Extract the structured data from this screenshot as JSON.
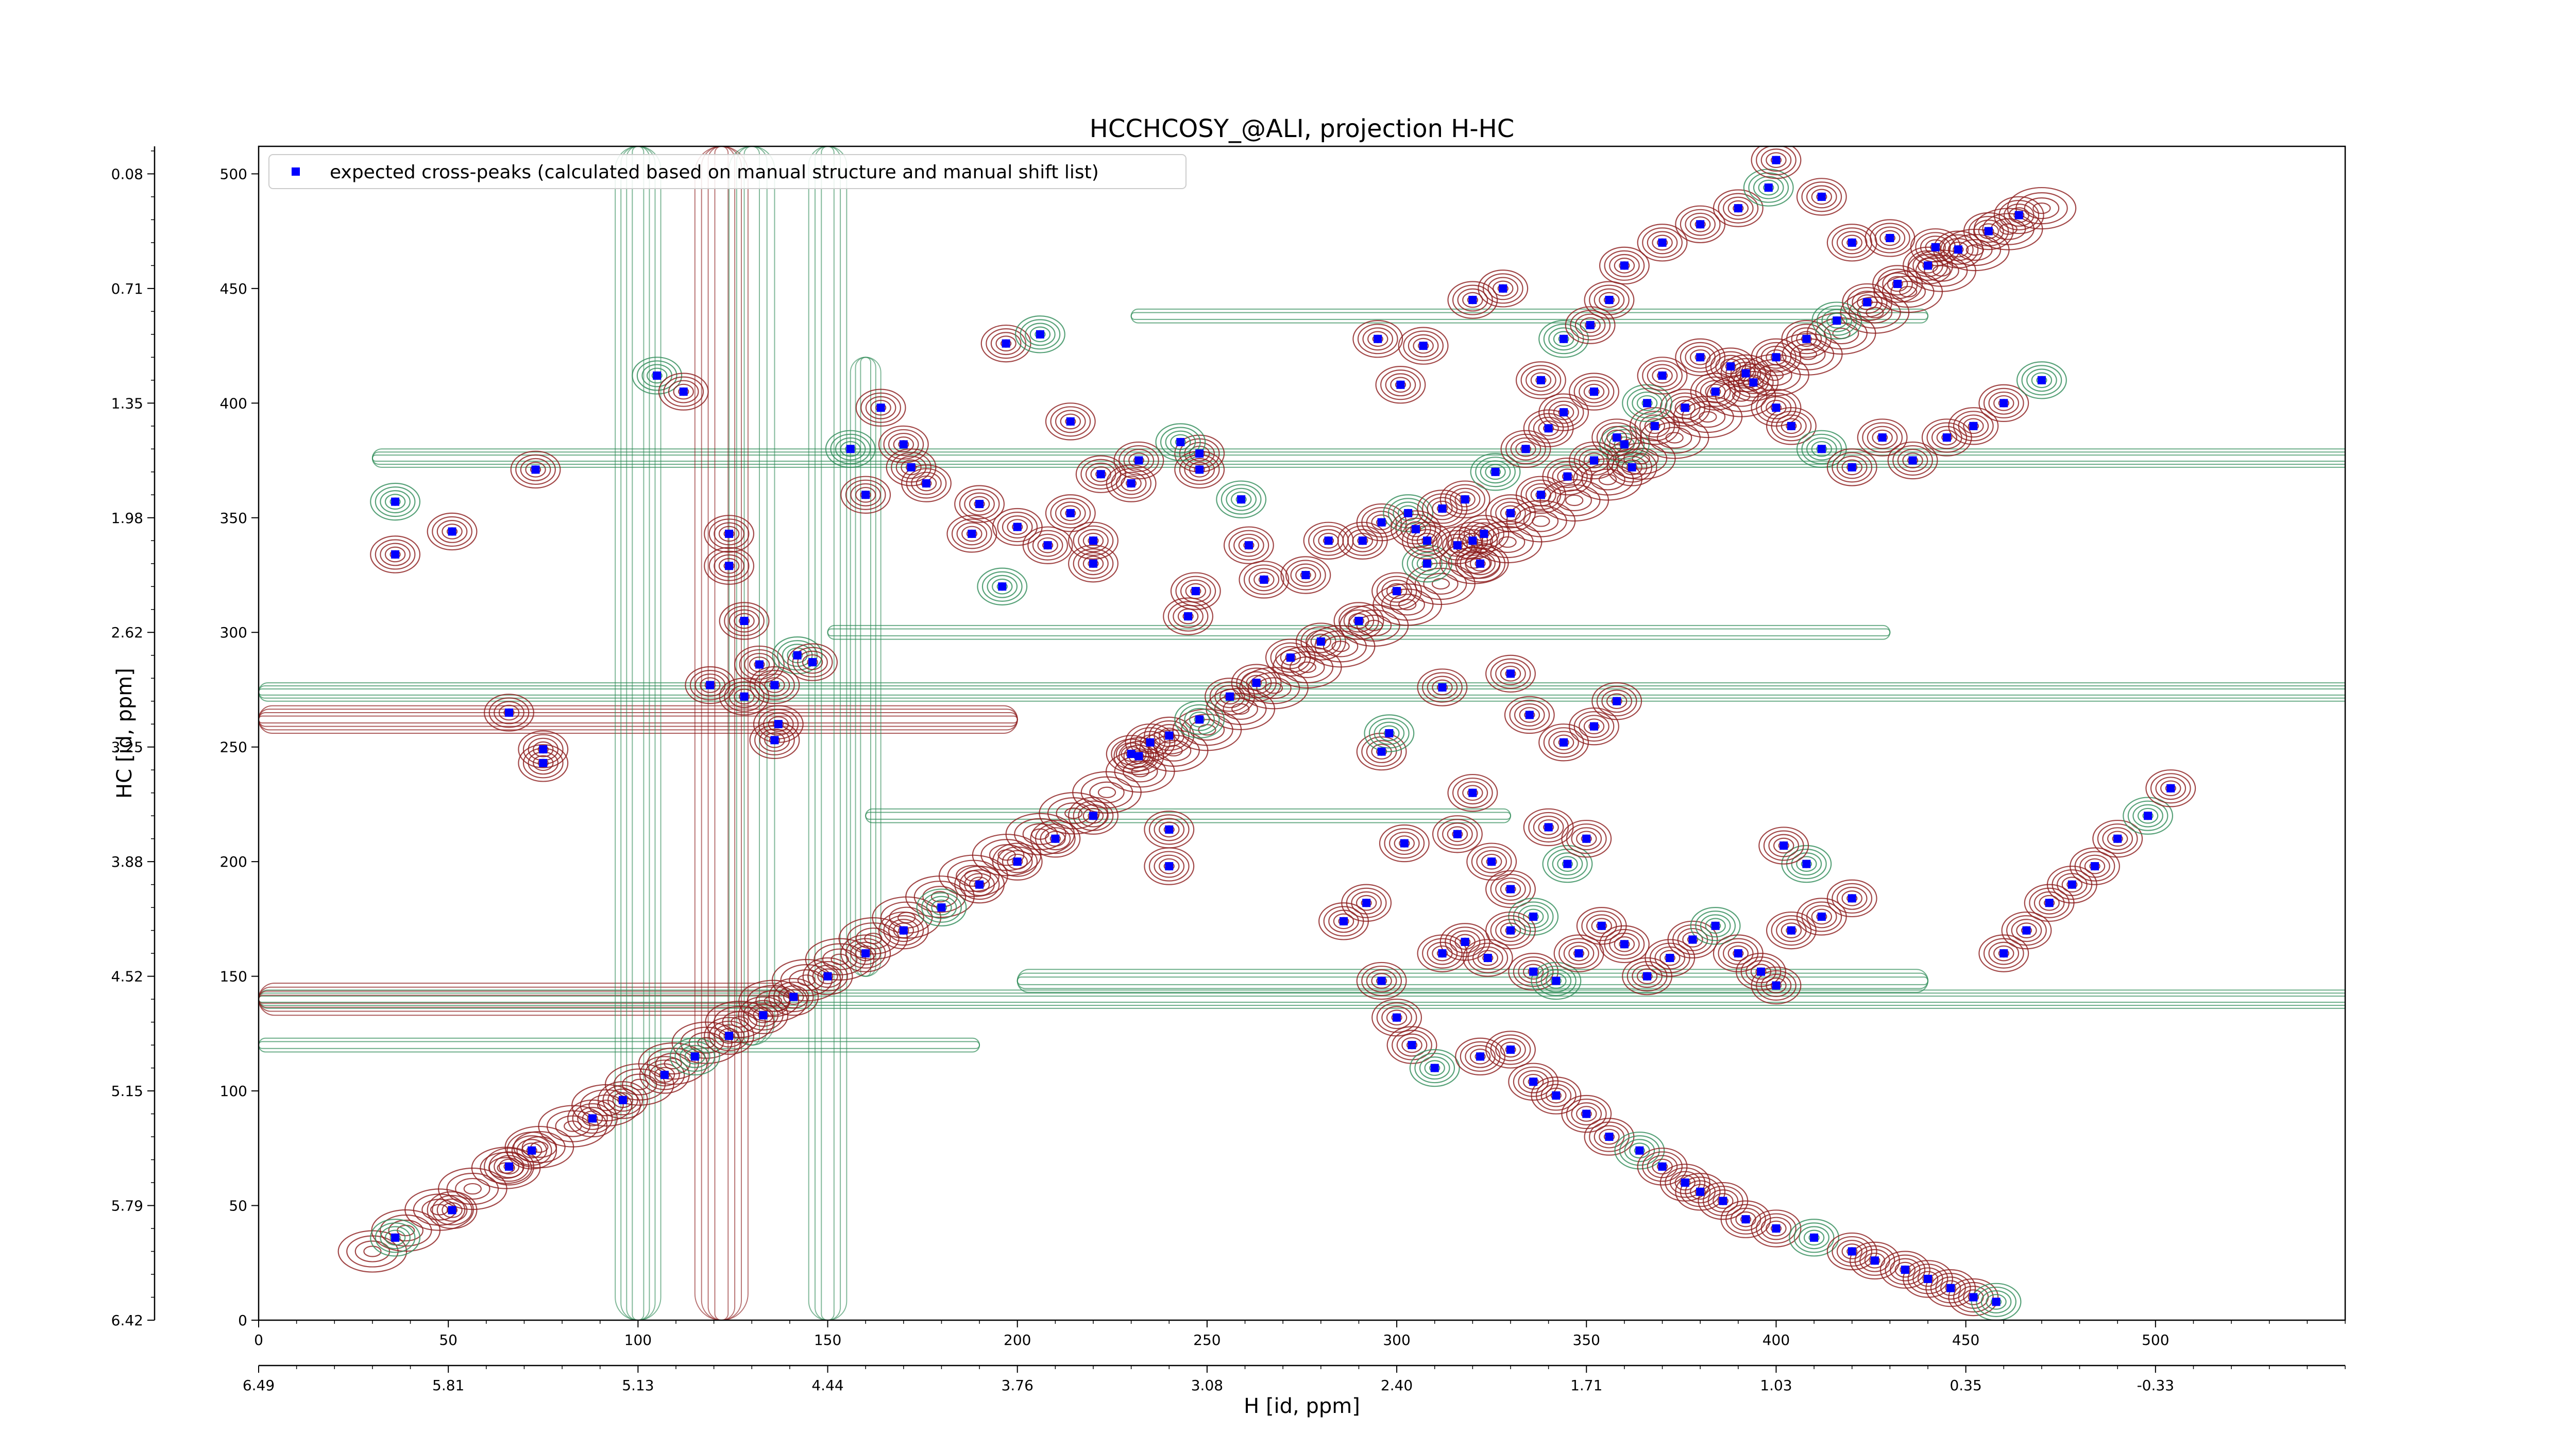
{
  "chart_data": {
    "type": "scatter",
    "title": "HCCHCOSY_@ALI, projection H-HC",
    "xlabel": "H [id, ppm]",
    "ylabel": "HC [id, ppm]",
    "xlim": [
      0,
      550
    ],
    "ylim": [
      0,
      512
    ],
    "x_ticks": [
      0,
      50,
      100,
      150,
      200,
      250,
      300,
      350,
      400,
      450,
      500
    ],
    "y_ticks": [
      0,
      50,
      100,
      150,
      200,
      250,
      300,
      350,
      400,
      450,
      500
    ],
    "x_ppm_ticks": [
      {
        "x": 0,
        "label": "6.49"
      },
      {
        "x": 50,
        "label": "5.81"
      },
      {
        "x": 100,
        "label": "5.13"
      },
      {
        "x": 150,
        "label": "4.44"
      },
      {
        "x": 200,
        "label": "3.76"
      },
      {
        "x": 250,
        "label": "3.08"
      },
      {
        "x": 300,
        "label": "2.40"
      },
      {
        "x": 350,
        "label": "1.71"
      },
      {
        "x": 400,
        "label": "1.03"
      },
      {
        "x": 450,
        "label": "0.35"
      },
      {
        "x": 500,
        "label": "-0.33"
      }
    ],
    "y_ppm_ticks": [
      {
        "y": 0,
        "label": "6.42"
      },
      {
        "y": 50,
        "label": "5.79"
      },
      {
        "y": 100,
        "label": "5.15"
      },
      {
        "y": 150,
        "label": "4.52"
      },
      {
        "y": 200,
        "label": "3.88"
      },
      {
        "y": 250,
        "label": "3.25"
      },
      {
        "y": 300,
        "label": "2.62"
      },
      {
        "y": 350,
        "label": "1.98"
      },
      {
        "y": 400,
        "label": "1.35"
      },
      {
        "y": 450,
        "label": "0.71"
      },
      {
        "y": 500,
        "label": "0.08"
      }
    ],
    "legend": {
      "location": "top-left",
      "entries": [
        "expected cross-peaks (calculated based on manual structure and manual shift list)"
      ]
    },
    "grid": false,
    "colors": {
      "marker": "#0000ff",
      "contour_positive": "#8b1a1a",
      "contour_negative": "#2e8b57"
    },
    "series": [
      {
        "name": "expected cross-peaks (calculated based on manual structure and manual shift list)",
        "points": [
          [
            36,
            36
          ],
          [
            51,
            48
          ],
          [
            66,
            67
          ],
          [
            72,
            74
          ],
          [
            88,
            88
          ],
          [
            96,
            96
          ],
          [
            107,
            107
          ],
          [
            115,
            115
          ],
          [
            124,
            124
          ],
          [
            133,
            133
          ],
          [
            141,
            141
          ],
          [
            150,
            150
          ],
          [
            160,
            160
          ],
          [
            170,
            170
          ],
          [
            180,
            180
          ],
          [
            190,
            190
          ],
          [
            200,
            200
          ],
          [
            210,
            210
          ],
          [
            220,
            220
          ],
          [
            232,
            246
          ],
          [
            240,
            255
          ],
          [
            248,
            262
          ],
          [
            256,
            272
          ],
          [
            263,
            278
          ],
          [
            272,
            289
          ],
          [
            280,
            296
          ],
          [
            290,
            305
          ],
          [
            300,
            318
          ],
          [
            308,
            330
          ],
          [
            316,
            338
          ],
          [
            323,
            343
          ],
          [
            330,
            352
          ],
          [
            338,
            360
          ],
          [
            345,
            368
          ],
          [
            352,
            375
          ],
          [
            360,
            382
          ],
          [
            368,
            390
          ],
          [
            376,
            398
          ],
          [
            384,
            405
          ],
          [
            392,
            413
          ],
          [
            400,
            420
          ],
          [
            408,
            428
          ],
          [
            416,
            436
          ],
          [
            424,
            444
          ],
          [
            432,
            452
          ],
          [
            440,
            460
          ],
          [
            448,
            467
          ],
          [
            456,
            475
          ],
          [
            464,
            482
          ],
          [
            36,
            357
          ],
          [
            36,
            334
          ],
          [
            51,
            344
          ],
          [
            73,
            371
          ],
          [
            66,
            265
          ],
          [
            75,
            243
          ],
          [
            75,
            249
          ],
          [
            105,
            412
          ],
          [
            112,
            405
          ],
          [
            124,
            343
          ],
          [
            124,
            329
          ],
          [
            128,
            305
          ],
          [
            132,
            286
          ],
          [
            136,
            277
          ],
          [
            142,
            290
          ],
          [
            146,
            287
          ],
          [
            136,
            253
          ],
          [
            137,
            260
          ],
          [
            128,
            272
          ],
          [
            119,
            277
          ],
          [
            160,
            360
          ],
          [
            156,
            380
          ],
          [
            164,
            398
          ],
          [
            170,
            382
          ],
          [
            172,
            372
          ],
          [
            176,
            365
          ],
          [
            188,
            343
          ],
          [
            190,
            356
          ],
          [
            196,
            320
          ],
          [
            200,
            346
          ],
          [
            208,
            338
          ],
          [
            214,
            352
          ],
          [
            220,
            340
          ],
          [
            220,
            330
          ],
          [
            197,
            426
          ],
          [
            206,
            430
          ],
          [
            214,
            392
          ],
          [
            222,
            369
          ],
          [
            230,
            365
          ],
          [
            232,
            375
          ],
          [
            248,
            378
          ],
          [
            248,
            371
          ],
          [
            243,
            383
          ],
          [
            245,
            307
          ],
          [
            247,
            318
          ],
          [
            240,
            214
          ],
          [
            240,
            198
          ],
          [
            235,
            252
          ],
          [
            230,
            247
          ],
          [
            259,
            358
          ],
          [
            261,
            338
          ],
          [
            265,
            323
          ],
          [
            276,
            325
          ],
          [
            282,
            340
          ],
          [
            291,
            340
          ],
          [
            296,
            348
          ],
          [
            303,
            352
          ],
          [
            305,
            345
          ],
          [
            308,
            340
          ],
          [
            312,
            354
          ],
          [
            318,
            358
          ],
          [
            320,
            340
          ],
          [
            322,
            330
          ],
          [
            326,
            370
          ],
          [
            334,
            380
          ],
          [
            340,
            389
          ],
          [
            344,
            396
          ],
          [
            352,
            405
          ],
          [
            358,
            385
          ],
          [
            362,
            372
          ],
          [
            366,
            400
          ],
          [
            370,
            412
          ],
          [
            380,
            420
          ],
          [
            388,
            416
          ],
          [
            394,
            409
          ],
          [
            400,
            398
          ],
          [
            404,
            390
          ],
          [
            412,
            380
          ],
          [
            420,
            372
          ],
          [
            428,
            385
          ],
          [
            436,
            375
          ],
          [
            445,
            385
          ],
          [
            452,
            390
          ],
          [
            460,
            400
          ],
          [
            470,
            410
          ],
          [
            295,
            428
          ],
          [
            301,
            408
          ],
          [
            307,
            425
          ],
          [
            320,
            445
          ],
          [
            328,
            450
          ],
          [
            338,
            410
          ],
          [
            344,
            428
          ],
          [
            351,
            434
          ],
          [
            356,
            445
          ],
          [
            360,
            460
          ],
          [
            370,
            470
          ],
          [
            380,
            478
          ],
          [
            390,
            485
          ],
          [
            398,
            494
          ],
          [
            400,
            506
          ],
          [
            412,
            490
          ],
          [
            420,
            470
          ],
          [
            430,
            472
          ],
          [
            442,
            468
          ],
          [
            296,
            248
          ],
          [
            298,
            256
          ],
          [
            312,
            276
          ],
          [
            330,
            282
          ],
          [
            335,
            264
          ],
          [
            344,
            252
          ],
          [
            352,
            259
          ],
          [
            358,
            270
          ],
          [
            345,
            199
          ],
          [
            350,
            210
          ],
          [
            340,
            215
          ],
          [
            320,
            230
          ],
          [
            316,
            212
          ],
          [
            325,
            200
          ],
          [
            330,
            188
          ],
          [
            336,
            176
          ],
          [
            302,
            208
          ],
          [
            312,
            160
          ],
          [
            318,
            165
          ],
          [
            324,
            158
          ],
          [
            330,
            170
          ],
          [
            336,
            152
          ],
          [
            342,
            148
          ],
          [
            348,
            160
          ],
          [
            354,
            172
          ],
          [
            360,
            164
          ],
          [
            366,
            150
          ],
          [
            372,
            158
          ],
          [
            378,
            166
          ],
          [
            384,
            172
          ],
          [
            390,
            160
          ],
          [
            396,
            152
          ],
          [
            400,
            146
          ],
          [
            404,
            170
          ],
          [
            412,
            176
          ],
          [
            420,
            184
          ],
          [
            408,
            199
          ],
          [
            402,
            207
          ],
          [
            286,
            174
          ],
          [
            292,
            182
          ],
          [
            296,
            148
          ],
          [
            300,
            132
          ],
          [
            304,
            120
          ],
          [
            310,
            110
          ],
          [
            322,
            115
          ],
          [
            330,
            118
          ],
          [
            336,
            104
          ],
          [
            342,
            98
          ],
          [
            350,
            90
          ],
          [
            356,
            80
          ],
          [
            364,
            74
          ],
          [
            370,
            67
          ],
          [
            376,
            60
          ],
          [
            380,
            56
          ],
          [
            386,
            52
          ],
          [
            392,
            44
          ],
          [
            400,
            40
          ],
          [
            410,
            36
          ],
          [
            420,
            30
          ],
          [
            426,
            26
          ],
          [
            434,
            22
          ],
          [
            440,
            18
          ],
          [
            446,
            14
          ],
          [
            452,
            10
          ],
          [
            458,
            8
          ],
          [
            460,
            160
          ],
          [
            466,
            170
          ],
          [
            472,
            182
          ],
          [
            478,
            190
          ],
          [
            484,
            198
          ],
          [
            490,
            210
          ],
          [
            498,
            220
          ],
          [
            504,
            232
          ]
        ]
      }
    ]
  }
}
